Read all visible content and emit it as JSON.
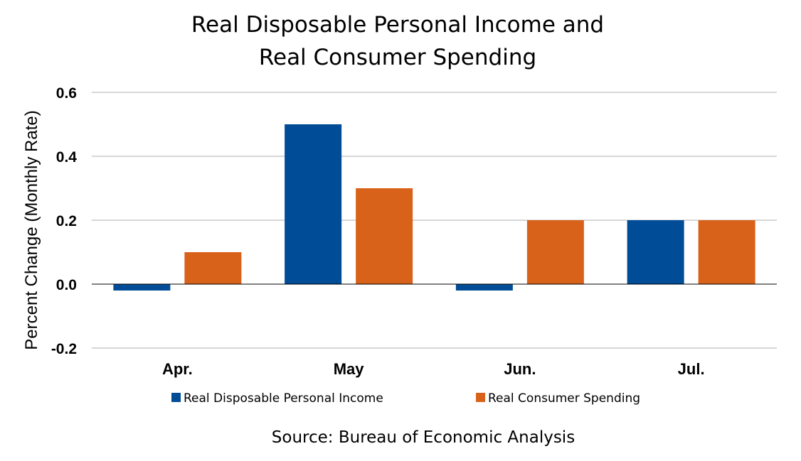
{
  "chart_data": {
    "type": "bar",
    "title_lines": [
      "Real Disposable Personal Income and",
      "Real Consumer Spending"
    ],
    "source": "Source:  Bureau of Economic Analysis",
    "ylabel": "Percent Change (Monthly Rate)",
    "xlabel": "",
    "categories": [
      "Apr.",
      "May",
      "Jun.",
      "Jul."
    ],
    "series": [
      {
        "name": "Real Disposable Personal Income",
        "values": [
          -0.02,
          0.5,
          -0.02,
          0.2
        ],
        "color": "#004c97"
      },
      {
        "name": "Real Consumer Spending",
        "values": [
          0.1,
          0.3,
          0.2,
          0.2
        ],
        "color": "#d9621a"
      }
    ],
    "ylim": [
      -0.2,
      0.6
    ],
    "yticks": [
      -0.2,
      0.0,
      0.2,
      0.4,
      0.6
    ],
    "ytick_labels": [
      "-0.2",
      "0.0",
      "0.2",
      "0.4",
      "0.6"
    ],
    "grid": true,
    "legend_position": "bottom"
  }
}
